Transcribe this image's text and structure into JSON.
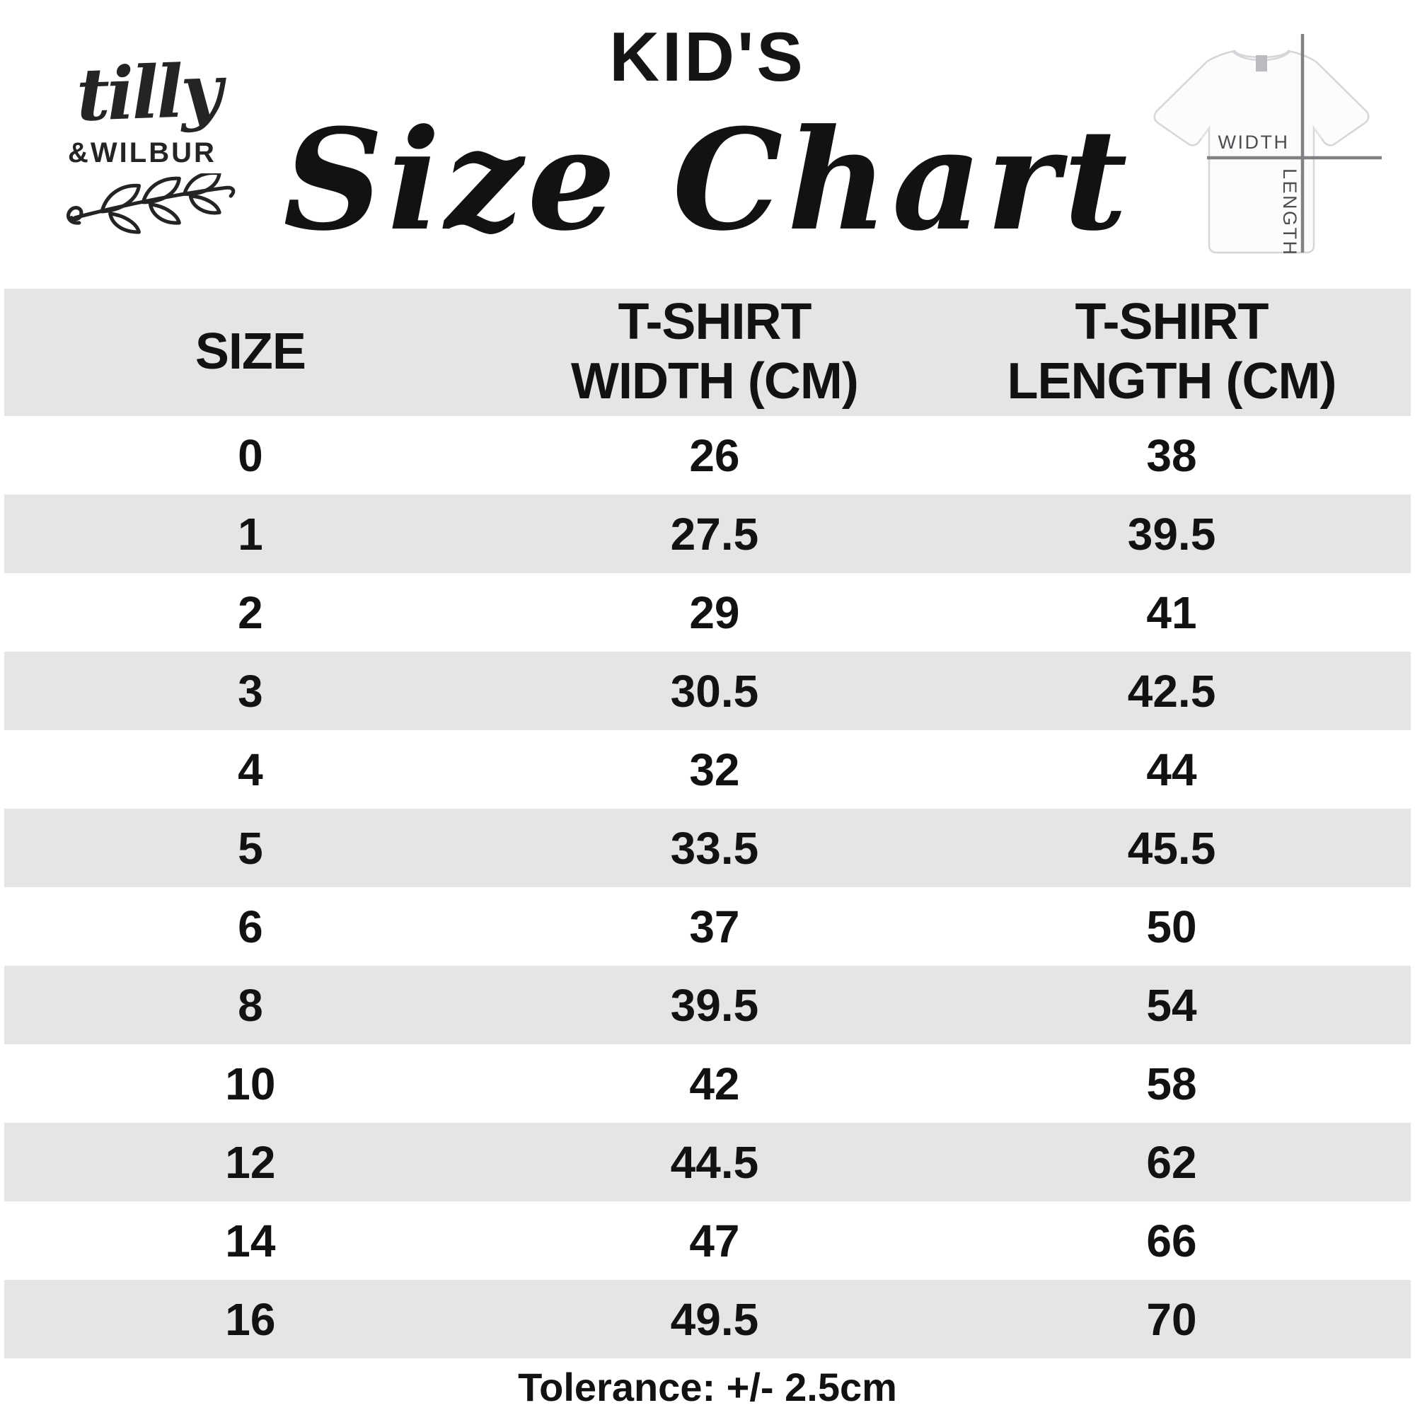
{
  "brand": {
    "script_name": "tilly",
    "caps_name": "&WILBUR"
  },
  "header": {
    "kicker": "KID'S",
    "title": "Size Chart"
  },
  "tshirt_diagram": {
    "width_label": "WIDTH",
    "length_label": "LENGTH"
  },
  "table": {
    "columns": [
      {
        "lines": [
          "SIZE"
        ]
      },
      {
        "lines": [
          "T-SHIRT",
          "WIDTH (CM)"
        ]
      },
      {
        "lines": [
          "T-SHIRT",
          "LENGTH (CM)"
        ]
      }
    ],
    "rows": [
      {
        "size": "0",
        "width": "26",
        "length": "38"
      },
      {
        "size": "1",
        "width": "27.5",
        "length": "39.5"
      },
      {
        "size": "2",
        "width": "29",
        "length": "41"
      },
      {
        "size": "3",
        "width": "30.5",
        "length": "42.5"
      },
      {
        "size": "4",
        "width": "32",
        "length": "44"
      },
      {
        "size": "5",
        "width": "33.5",
        "length": "45.5"
      },
      {
        "size": "6",
        "width": "37",
        "length": "50"
      },
      {
        "size": "8",
        "width": "39.5",
        "length": "54"
      },
      {
        "size": "10",
        "width": "42",
        "length": "58"
      },
      {
        "size": "12",
        "width": "44.5",
        "length": "62"
      },
      {
        "size": "14",
        "width": "47",
        "length": "66"
      },
      {
        "size": "16",
        "width": "49.5",
        "length": "70"
      }
    ]
  },
  "footer": {
    "tolerance": "Tolerance: +/- 2.5cm"
  },
  "colors": {
    "stripe_gray": "#e4e5e7",
    "text_black": "#121212",
    "diagram_line_gray": "#7f8184"
  },
  "chart_data": {
    "type": "table",
    "title": "KID'S Size Chart",
    "columns": [
      "SIZE",
      "T-SHIRT WIDTH (CM)",
      "T-SHIRT LENGTH (CM)"
    ],
    "rows": [
      [
        0,
        26,
        38
      ],
      [
        1,
        27.5,
        39.5
      ],
      [
        2,
        29,
        41
      ],
      [
        3,
        30.5,
        42.5
      ],
      [
        4,
        32,
        44
      ],
      [
        5,
        33.5,
        45.5
      ],
      [
        6,
        37,
        50
      ],
      [
        8,
        39.5,
        54
      ],
      [
        10,
        42,
        58
      ],
      [
        12,
        44.5,
        62
      ],
      [
        14,
        47,
        66
      ],
      [
        16,
        49.5,
        70
      ]
    ],
    "note": "Tolerance: +/- 2.5cm",
    "layout": "alternating row stripes, header band gray, all text centered"
  }
}
